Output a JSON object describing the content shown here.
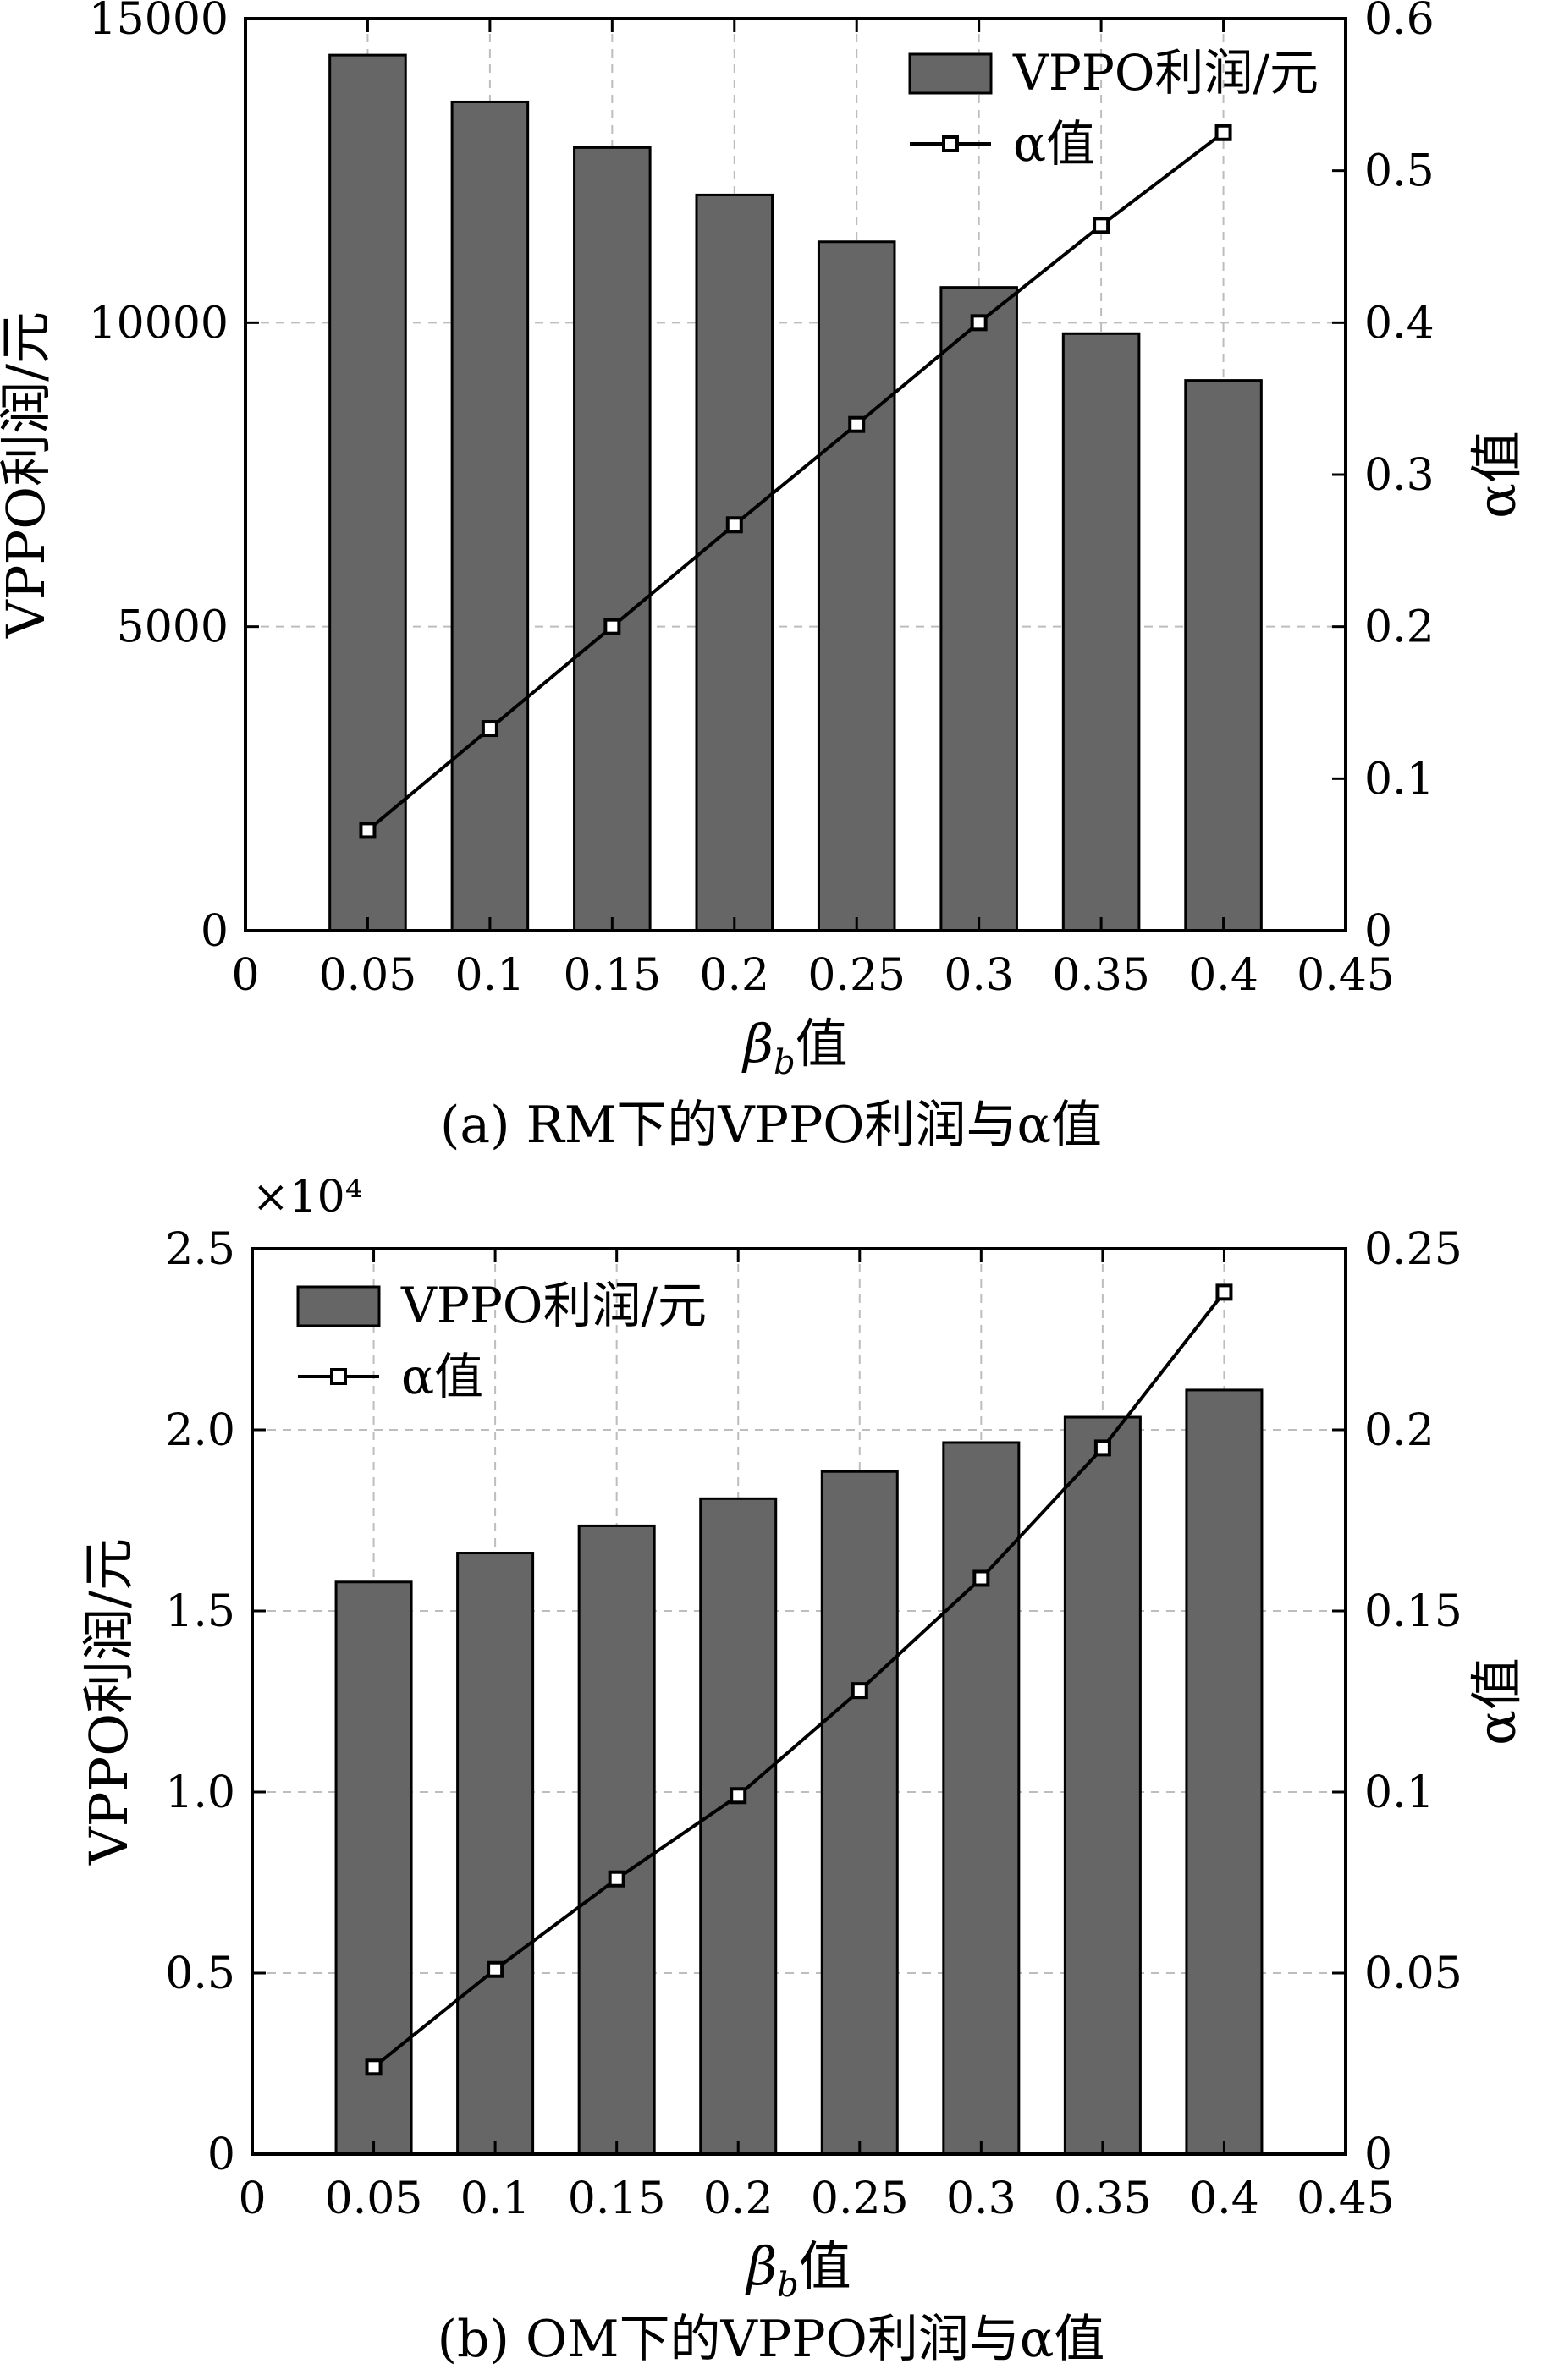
{
  "chart_data": [
    {
      "type": "bar+line",
      "x": [
        0.05,
        0.1,
        0.15,
        0.2,
        0.25,
        0.3,
        0.35,
        0.4
      ],
      "series": [
        {
          "name": "VPPO利润/元",
          "type": "bar",
          "axis": "left",
          "values": [
            14400,
            13630,
            12880,
            12100,
            11330,
            10580,
            9820,
            9050
          ]
        },
        {
          "name": "α值",
          "type": "line",
          "axis": "right",
          "values": [
            0.066,
            0.133,
            0.2,
            0.267,
            0.333,
            0.4,
            0.464,
            0.525
          ]
        }
      ],
      "xlabel": "βb值",
      "xlabel_main": "β",
      "xlabel_sub": "b",
      "xlabel_suffix": "值",
      "ylabel_left": "VPPO利润/元",
      "ylabel_right": "α值",
      "xlim": [
        0,
        0.45
      ],
      "xticks": [
        "0",
        "0.05",
        "0.1",
        "0.15",
        "0.2",
        "0.25",
        "0.3",
        "0.35",
        "0.4",
        "0.45"
      ],
      "ylim_left": [
        0,
        15000
      ],
      "yticks_left": [
        "0",
        "5000",
        "10000",
        "15000"
      ],
      "ylim_right": [
        0,
        0.6
      ],
      "yticks_right": [
        "0",
        "0.1",
        "0.2",
        "0.3",
        "0.4",
        "0.5",
        "0.6"
      ],
      "multiplier": "",
      "grid": true,
      "legend": "top-right",
      "caption": "(a) RM下的VPPO利润与α值"
    },
    {
      "type": "bar+line",
      "x": [
        0.05,
        0.1,
        0.15,
        0.2,
        0.25,
        0.3,
        0.35,
        0.4
      ],
      "series": [
        {
          "name": "VPPO利润/元",
          "type": "bar",
          "axis": "left",
          "values": [
            1.58,
            1.66,
            1.735,
            1.81,
            1.885,
            1.965,
            2.035,
            2.11
          ]
        },
        {
          "name": "α值",
          "type": "line",
          "axis": "right",
          "values": [
            0.024,
            0.051,
            0.076,
            0.099,
            0.128,
            0.159,
            0.195,
            0.238
          ]
        }
      ],
      "xlabel": "βb值",
      "xlabel_main": "β",
      "xlabel_sub": "b",
      "xlabel_suffix": "值",
      "ylabel_left": "VPPO利润/元",
      "ylabel_right": "α值",
      "xlim": [
        0,
        0.45
      ],
      "xticks": [
        "0",
        "0.05",
        "0.1",
        "0.15",
        "0.2",
        "0.25",
        "0.3",
        "0.35",
        "0.4",
        "0.45"
      ],
      "ylim_left": [
        0,
        2.5
      ],
      "yticks_left": [
        "0",
        "0.5",
        "1.0",
        "1.5",
        "2.0",
        "2.5"
      ],
      "ylim_right": [
        0,
        0.25
      ],
      "yticks_right": [
        "0",
        "0.05",
        "0.1",
        "0.15",
        "0.2",
        "0.25"
      ],
      "multiplier": "×10⁴",
      "grid": true,
      "legend": "top-left",
      "caption": "(b) OM下的VPPO利润与α值"
    }
  ]
}
